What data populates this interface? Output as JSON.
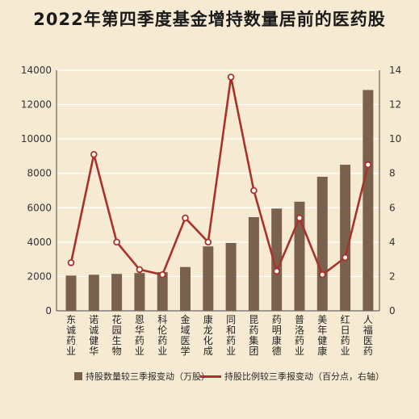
{
  "chart_data": {
    "type": "bar+line",
    "title": "2022年第四季度基金增持数量居前的医药股",
    "categories": [
      [
        "东",
        "诚",
        "药",
        "业"
      ],
      [
        "诺",
        "诚",
        "健",
        "华"
      ],
      [
        "花",
        "园",
        "生",
        "物"
      ],
      [
        "恩",
        "华",
        "药",
        "业"
      ],
      [
        "科",
        "伦",
        "药",
        "业"
      ],
      [
        "金",
        "域",
        "医",
        "学"
      ],
      [
        "康",
        "龙",
        "化",
        "成"
      ],
      [
        "同",
        "和",
        "药",
        "业"
      ],
      [
        "昆",
        "药",
        "集",
        "团"
      ],
      [
        "药",
        "明",
        "康",
        "德"
      ],
      [
        "普",
        "洛",
        "药",
        "业"
      ],
      [
        "美",
        "年",
        "健",
        "康"
      ],
      [
        "红",
        "日",
        "药",
        "业"
      ],
      [
        "人",
        "福",
        "医",
        "药"
      ]
    ],
    "series": [
      {
        "name": "持股数量较三季报变动（万股）",
        "type": "bar",
        "axis": "left",
        "color": "#7a614d",
        "values": [
          2050,
          2100,
          2150,
          2200,
          2250,
          2550,
          3750,
          3950,
          5450,
          5950,
          6350,
          7800,
          8500,
          12850
        ]
      },
      {
        "name": "持股比例较三季报变动（百分点，右轴）",
        "type": "line",
        "axis": "right",
        "color": "#a8322b",
        "values": [
          2.8,
          9.1,
          4.0,
          2.4,
          2.1,
          5.4,
          4.0,
          13.6,
          7.0,
          2.3,
          5.4,
          2.1,
          3.1,
          8.5
        ]
      }
    ],
    "left_axis": {
      "ylim": [
        0,
        14000
      ],
      "ticks": [
        "0",
        "2000",
        "4000",
        "6000",
        "8000",
        "10000",
        "12000",
        "14000"
      ]
    },
    "right_axis": {
      "ylim": [
        0,
        14
      ],
      "ticks": [
        "0",
        "2",
        "4",
        "6",
        "8",
        "10",
        "12",
        "14"
      ]
    },
    "grid": true,
    "legend_position": "bottom"
  }
}
